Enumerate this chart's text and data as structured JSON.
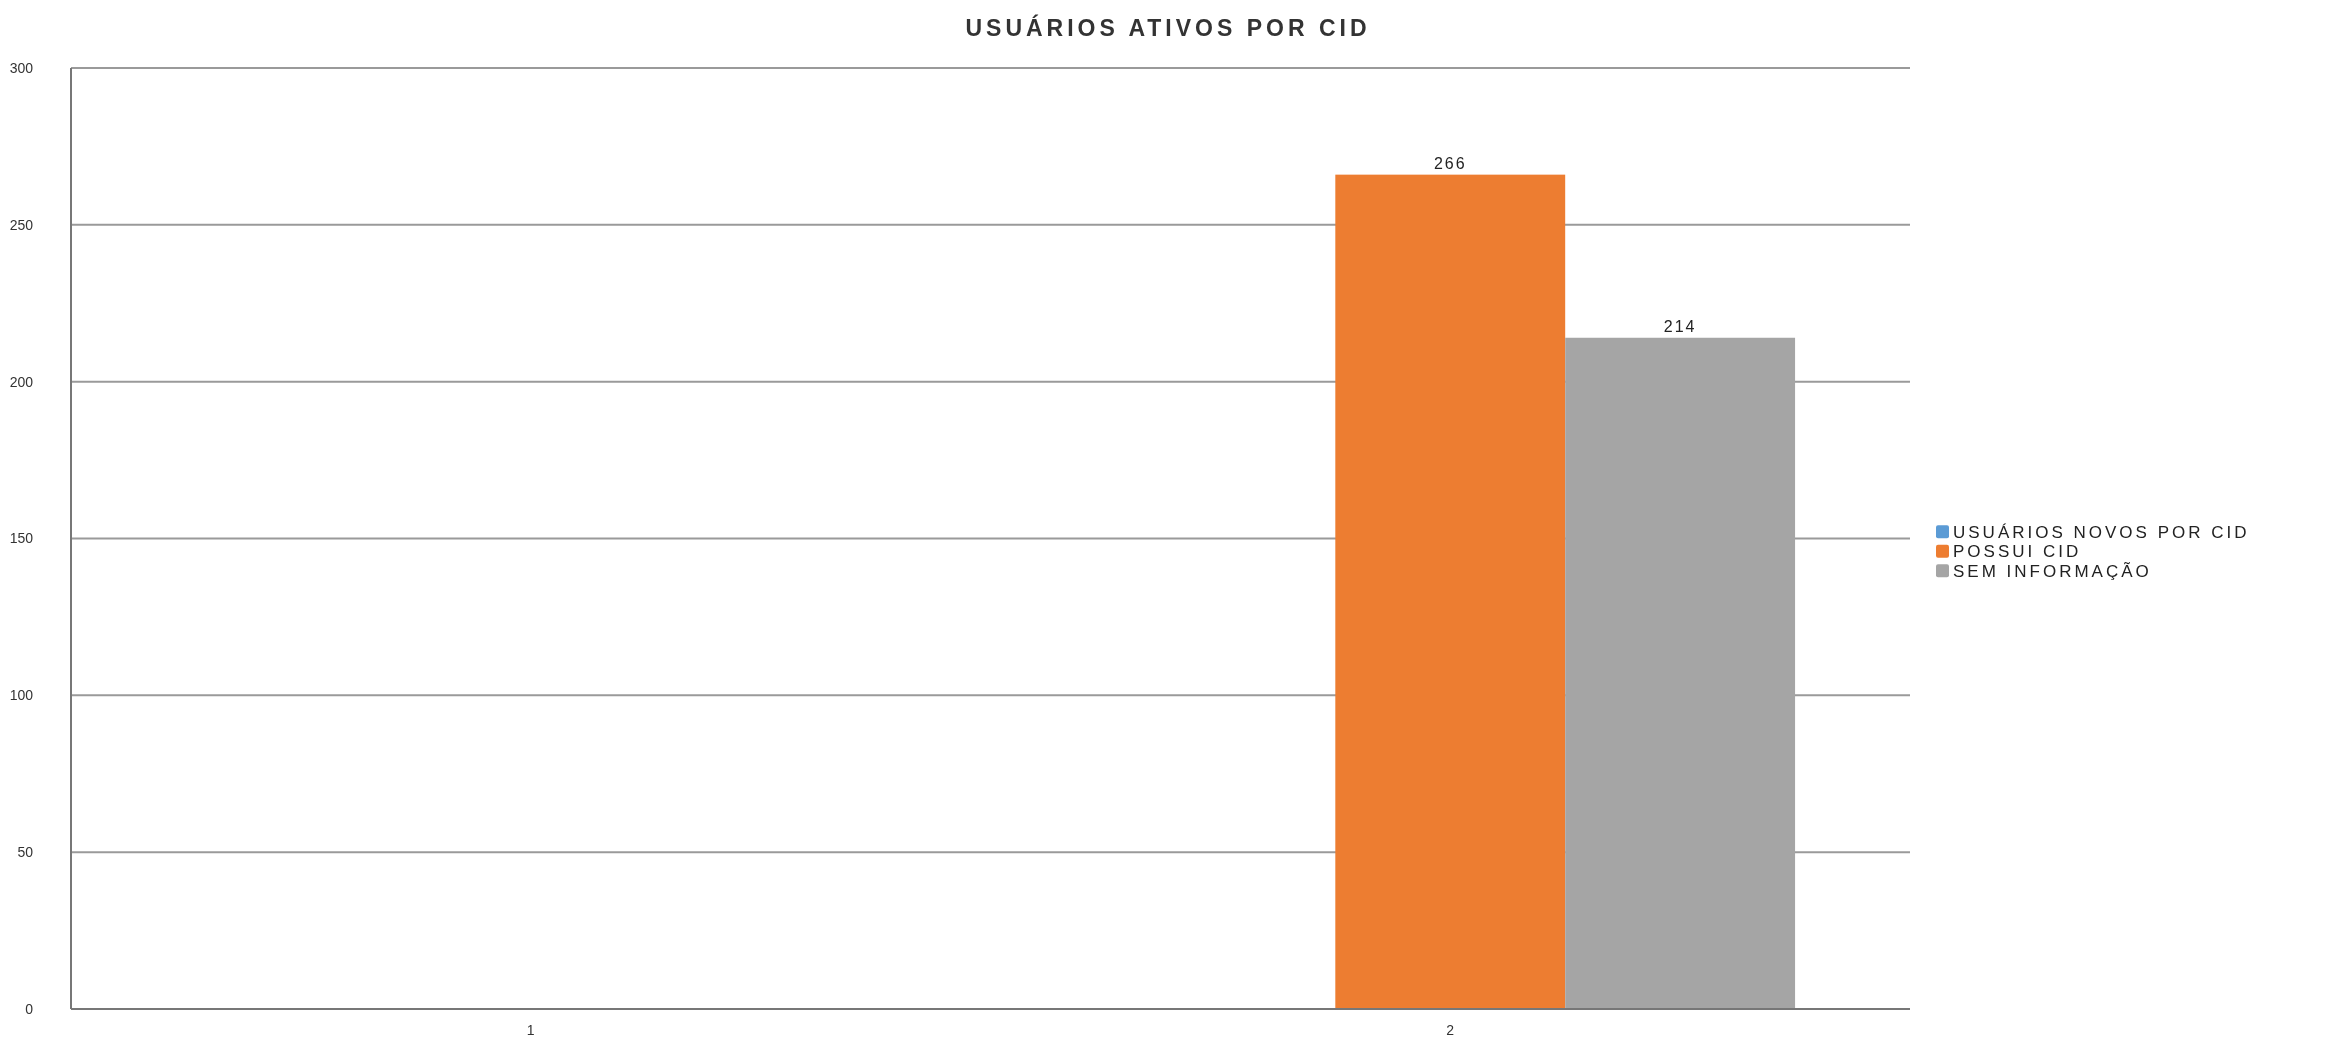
{
  "chart_data": {
    "type": "bar",
    "title": "USUÁRIOS ATIVOS POR CID",
    "categories": [
      "1",
      "2"
    ],
    "series": [
      {
        "name": "USUÁRIOS NOVOS POR CID",
        "color": "#5b9bd5",
        "values": [
          null,
          null
        ]
      },
      {
        "name": "POSSUI CID",
        "color": "#ed7d31",
        "values": [
          null,
          266
        ]
      },
      {
        "name": "SEM INFORMAÇÃO",
        "color": "#a5a5a5",
        "values": [
          null,
          214
        ]
      }
    ],
    "ylim": [
      0,
      300
    ],
    "yticks": [
      0,
      50,
      100,
      150,
      200,
      250,
      300
    ],
    "grid": true,
    "legend": "right",
    "data_labels": true
  }
}
